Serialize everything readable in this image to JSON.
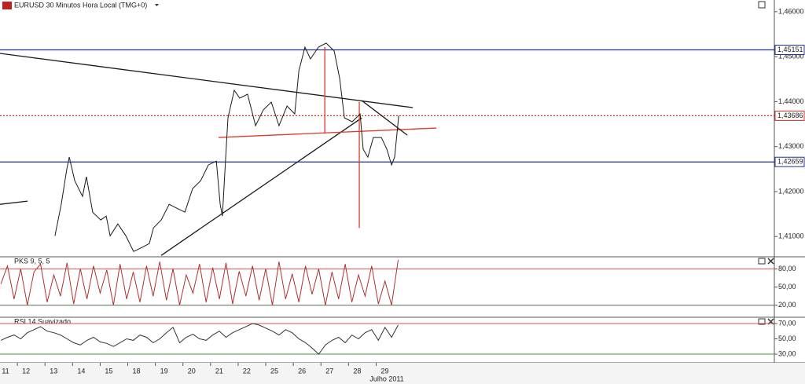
{
  "chart_data": [
    {
      "type": "line",
      "title": "EURUSD 30 Minutos Hora Local (TMG+0)",
      "color": "#1a1a1a",
      "categories": [
        "11",
        "12",
        "13",
        "14",
        "15",
        "18",
        "19",
        "20",
        "21",
        "22",
        "25",
        "26",
        "27",
        "28",
        "29"
      ],
      "xlabel": "Julho 2011",
      "xlim": [
        0.37,
        28.43
      ],
      "ylim": [
        1.4055,
        1.4626
      ],
      "yticks": [
        {
          "value": 1.46,
          "label": "1,46000"
        },
        {
          "value": 1.45,
          "label": "1,45000"
        },
        {
          "value": 1.44,
          "label": "1,44000"
        },
        {
          "value": 1.43,
          "label": "1,43000"
        },
        {
          "value": 1.42,
          "label": "1,42000"
        },
        {
          "value": 1.41,
          "label": "1,41000"
        }
      ],
      "x": [
        2.36,
        2.59,
        2.79,
        2.88,
        3.08,
        3.36,
        3.5,
        3.73,
        4.02,
        4.22,
        4.36,
        4.64,
        4.93,
        5.21,
        5.5,
        5.78,
        5.93,
        6.21,
        6.5,
        6.78,
        7.07,
        7.35,
        7.64,
        7.92,
        8.21,
        8.35,
        8.43,
        8.55,
        8.63,
        8.86,
        9.06,
        9.34,
        9.63,
        9.91,
        10.2,
        10.48,
        10.77,
        11.05,
        11.2,
        11.42,
        11.62,
        11.91,
        12.19,
        12.48,
        12.68,
        12.85,
        13.13,
        13.42,
        13.53,
        13.7,
        13.9,
        14.19,
        14.39,
        14.56,
        14.67,
        14.82
      ],
      "values": [
        1.41017,
        1.41717,
        1.42503,
        1.42766,
        1.42241,
        1.41892,
        1.42329,
        1.41542,
        1.41367,
        1.41455,
        1.41017,
        1.4128,
        1.41017,
        1.40668,
        1.40755,
        1.40843,
        1.41192,
        1.41367,
        1.41717,
        1.41629,
        1.41542,
        1.42066,
        1.42241,
        1.42591,
        1.42678,
        1.41717,
        1.41455,
        1.42766,
        1.4364,
        1.44252,
        1.44077,
        1.44164,
        1.43465,
        1.43815,
        1.4399,
        1.43465,
        1.43902,
        1.43727,
        1.44689,
        1.45213,
        1.44951,
        1.45213,
        1.45301,
        1.45126,
        1.44514,
        1.4364,
        1.43552,
        1.43727,
        1.42941,
        1.42766,
        1.43203,
        1.43203,
        1.42941,
        1.42591,
        1.42766,
        1.43686
      ],
      "levels": [
        {
          "value": 1.45151,
          "label": "1,45151",
          "color": "#1f2f9f",
          "style": "solid"
        },
        {
          "value": 1.43686,
          "label": "1,43686",
          "color": "#d03020",
          "style": "dotted"
        },
        {
          "value": 1.42659,
          "label": "1,42659",
          "color": "#1f2f9f",
          "style": "solid"
        }
      ],
      "drawings": [
        {
          "color": "#1a1a1a",
          "points": [
            [
              0.37,
              1.45073
            ],
            [
              15.33,
              1.43867
            ]
          ]
        },
        {
          "color": "#1a1a1a",
          "points": [
            [
              6.21,
              1.4058
            ],
            [
              13.48,
              1.4364
            ]
          ]
        },
        {
          "color": "#e03a2a",
          "points": [
            [
              8.29,
              1.43203
            ],
            [
              16.18,
              1.43413
            ]
          ]
        },
        {
          "color": "#e03a2a",
          "points": [
            [
              12.14,
              1.45213
            ],
            [
              12.14,
              1.4329
            ]
          ]
        },
        {
          "color": "#e03a2a",
          "points": [
            [
              13.39,
              1.4399
            ],
            [
              13.39,
              1.41192
            ]
          ]
        },
        {
          "color": "#1a1a1a",
          "points": [
            [
              13.48,
              1.44024
            ],
            [
              15.13,
              1.43255
            ]
          ]
        },
        {
          "color": "#1a1a1a",
          "points": [
            [
              0.37,
              1.41717
            ],
            [
              1.37,
              1.41787
            ]
          ]
        }
      ]
    },
    {
      "type": "line",
      "title": "PKS 9, 5, 5",
      "color": "#b03030",
      "xlim": [
        0.37,
        28.43
      ],
      "ylim": [
        0,
        100
      ],
      "yticks": [
        {
          "value": 80,
          "label": "80,00"
        },
        {
          "value": 50,
          "label": "50,00"
        },
        {
          "value": 20,
          "label": "20,00"
        }
      ],
      "levels": [
        {
          "value": 80,
          "color": "#d9534f"
        },
        {
          "value": 20,
          "color": "#556b55"
        }
      ],
      "x": [
        0.4,
        0.64,
        0.88,
        1.12,
        1.36,
        1.6,
        1.84,
        2.08,
        2.32,
        2.56,
        2.8,
        3.04,
        3.28,
        3.52,
        3.76,
        4.0,
        4.24,
        4.48,
        4.72,
        4.96,
        5.2,
        5.44,
        5.68,
        5.92,
        6.16,
        6.4,
        6.64,
        6.88,
        7.12,
        7.36,
        7.6,
        7.84,
        8.08,
        8.32,
        8.56,
        8.8,
        9.04,
        9.28,
        9.52,
        9.76,
        10.0,
        10.24,
        10.48,
        10.72,
        10.96,
        11.2,
        11.44,
        11.68,
        11.92,
        12.16,
        12.4,
        12.64,
        12.88,
        13.12,
        13.36,
        13.6,
        13.84,
        14.08,
        14.32,
        14.56,
        14.8
      ],
      "values": [
        55,
        85,
        30,
        80,
        20,
        75,
        88,
        25,
        70,
        35,
        90,
        22,
        80,
        30,
        85,
        40,
        78,
        20,
        88,
        30,
        75,
        25,
        85,
        35,
        92,
        28,
        80,
        20,
        70,
        40,
        88,
        25,
        82,
        30,
        90,
        22,
        76,
        35,
        85,
        28,
        80,
        20,
        92,
        30,
        72,
        25,
        85,
        38,
        80,
        20,
        75,
        30,
        88,
        25,
        70,
        35,
        85,
        22,
        60,
        20,
        95
      ]
    },
    {
      "type": "line",
      "title": "RSI 14 Suavizado",
      "color": "#333333",
      "xlim": [
        0.37,
        28.43
      ],
      "ylim": [
        18.7,
        78.2
      ],
      "yticks": [
        {
          "value": 70,
          "label": "70,00"
        },
        {
          "value": 50,
          "label": "50,00"
        },
        {
          "value": 30,
          "label": "30,00"
        }
      ],
      "levels": [
        {
          "value": 70,
          "color": "#d9534f"
        },
        {
          "value": 30,
          "color": "#3a9a3a"
        }
      ],
      "x": [
        0.4,
        0.64,
        0.88,
        1.12,
        1.36,
        1.6,
        1.84,
        2.08,
        2.32,
        2.56,
        2.8,
        3.04,
        3.28,
        3.52,
        3.76,
        4.0,
        4.24,
        4.48,
        4.72,
        4.96,
        5.2,
        5.44,
        5.68,
        5.92,
        6.16,
        6.4,
        6.64,
        6.88,
        7.12,
        7.36,
        7.6,
        7.84,
        8.08,
        8.32,
        8.56,
        8.8,
        9.04,
        9.28,
        9.52,
        9.76,
        10.0,
        10.24,
        10.48,
        10.72,
        10.96,
        11.2,
        11.44,
        11.68,
        11.92,
        12.16,
        12.4,
        12.64,
        12.88,
        13.12,
        13.36,
        13.6,
        13.84,
        14.08,
        14.32,
        14.56,
        14.8
      ],
      "values": [
        48,
        52,
        55,
        50,
        58,
        62,
        66,
        60,
        58,
        55,
        50,
        45,
        42,
        48,
        52,
        46,
        44,
        40,
        45,
        50,
        48,
        55,
        52,
        45,
        50,
        58,
        65,
        45,
        52,
        56,
        50,
        48,
        55,
        60,
        52,
        58,
        62,
        66,
        70,
        68,
        64,
        60,
        55,
        62,
        58,
        50,
        45,
        38,
        30,
        42,
        48,
        52,
        45,
        55,
        50,
        58,
        62,
        48,
        65,
        52,
        68
      ]
    }
  ]
}
